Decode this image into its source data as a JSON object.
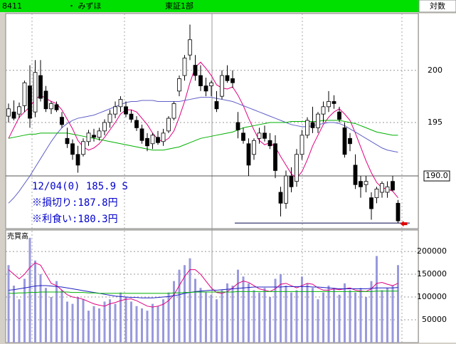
{
  "header": {
    "code": "8411",
    "name": "・ みずほ",
    "market": "東証1部",
    "scale": "対数"
  },
  "chart_data": [
    {
      "type": "candlestick",
      "log_scale": true,
      "grid": true,
      "ylim": [
        185.2,
        205.6
      ],
      "yticks": [
        195,
        200
      ],
      "price_line": {
        "value": 190.0,
        "label": "190.0"
      },
      "h_line": 185.7,
      "annotations": [
        "12/04(0) 185.9 S",
        "※損切り:187.8円",
        "※利食い:180.3円"
      ],
      "ohlc": [
        [
          195.6,
          196.8,
          195.0,
          196.3
        ],
        [
          196.0,
          197.1,
          195.2,
          195.4
        ],
        [
          195.8,
          196.9,
          195.4,
          196.5
        ],
        [
          196.6,
          199.0,
          196.0,
          198.8
        ],
        [
          198.5,
          200.5,
          194.5,
          195.4
        ],
        [
          196.0,
          201.0,
          195.5,
          199.8
        ],
        [
          199.5,
          201.0,
          197.0,
          197.3
        ],
        [
          198.0,
          198.5,
          196.0,
          196.3
        ],
        [
          196.3,
          197.0,
          195.8,
          196.8
        ],
        [
          196.7,
          197.0,
          196.0,
          196.2
        ],
        [
          195.5,
          196.0,
          194.5,
          194.8
        ],
        [
          193.5,
          194.5,
          192.6,
          193.0
        ],
        [
          193.0,
          193.4,
          191.5,
          192.0
        ],
        [
          192.0,
          192.8,
          190.3,
          191.0
        ],
        [
          192.0,
          193.5,
          191.8,
          193.2
        ],
        [
          193.2,
          194.3,
          192.8,
          194.0
        ],
        [
          193.8,
          194.4,
          193.2,
          193.6
        ],
        [
          193.6,
          194.5,
          193.3,
          194.2
        ],
        [
          194.2,
          195.3,
          193.8,
          195.0
        ],
        [
          195.0,
          196.2,
          194.5,
          195.8
        ],
        [
          195.8,
          197.0,
          195.4,
          196.5
        ],
        [
          196.5,
          197.5,
          196.0,
          197.2
        ],
        [
          196.5,
          197.0,
          195.5,
          195.8
        ],
        [
          195.8,
          196.2,
          195.0,
          195.3
        ],
        [
          195.2,
          195.6,
          194.2,
          194.5
        ],
        [
          194.4,
          194.8,
          193.0,
          193.3
        ],
        [
          193.5,
          194.0,
          192.3,
          192.8
        ],
        [
          193.0,
          194.0,
          192.5,
          193.8
        ],
        [
          193.6,
          194.2,
          192.9,
          193.1
        ],
        [
          193.2,
          194.4,
          192.8,
          194.0
        ],
        [
          194.2,
          195.6,
          194.0,
          195.4
        ],
        [
          195.4,
          197.0,
          195.2,
          196.8
        ],
        [
          198.0,
          199.5,
          197.5,
          199.2
        ],
        [
          199.5,
          201.5,
          199.0,
          201.2
        ],
        [
          201.5,
          204.5,
          201.0,
          203.0
        ],
        [
          200.5,
          201.5,
          199.0,
          199.5
        ],
        [
          199.5,
          200.5,
          198.0,
          198.5
        ],
        [
          198.5,
          199.3,
          197.5,
          198.0
        ],
        [
          198.5,
          199.0,
          197.5,
          198.8
        ],
        [
          197.0,
          198.0,
          196.0,
          196.3
        ],
        [
          197.5,
          200.0,
          197.2,
          199.5
        ],
        [
          199.5,
          200.5,
          198.8,
          199.0
        ],
        [
          199.2,
          200.0,
          198.3,
          198.8
        ],
        [
          195.0,
          196.0,
          193.5,
          194.3
        ],
        [
          194.0,
          194.5,
          193.0,
          193.3
        ],
        [
          193.0,
          193.5,
          190.0,
          191.0
        ],
        [
          192.0,
          193.5,
          191.5,
          193.3
        ],
        [
          193.5,
          194.5,
          193.0,
          194.0
        ],
        [
          194.0,
          194.7,
          193.2,
          193.5
        ],
        [
          193.3,
          194.0,
          192.5,
          192.8
        ],
        [
          193.0,
          193.8,
          189.8,
          190.5
        ],
        [
          188.5,
          189.0,
          186.3,
          187.5
        ],
        [
          187.5,
          190.5,
          187.0,
          190.0
        ],
        [
          190.0,
          190.8,
          188.5,
          189.0
        ],
        [
          189.5,
          192.5,
          189.0,
          192.0
        ],
        [
          192.0,
          194.3,
          191.5,
          193.8
        ],
        [
          193.8,
          195.5,
          193.5,
          195.2
        ],
        [
          195.0,
          196.5,
          194.0,
          194.5
        ],
        [
          194.5,
          196.0,
          194.0,
          195.8
        ],
        [
          195.8,
          197.0,
          195.0,
          196.5
        ],
        [
          196.5,
          198.0,
          196.0,
          197.0
        ],
        [
          197.0,
          197.6,
          196.3,
          196.8
        ],
        [
          196.0,
          196.5,
          195.0,
          195.3
        ],
        [
          194.5,
          195.0,
          191.7,
          192.0
        ],
        [
          193.5,
          194.0,
          192.3,
          193.0
        ],
        [
          191.0,
          192.0,
          188.8,
          189.2
        ],
        [
          189.5,
          190.0,
          188.0,
          189.0
        ],
        [
          189.2,
          190.0,
          188.5,
          189.5
        ],
        [
          188.0,
          188.5,
          186.0,
          187.0
        ],
        [
          188.0,
          189.0,
          187.5,
          188.8
        ],
        [
          188.5,
          189.5,
          188.0,
          189.3
        ],
        [
          188.5,
          189.5,
          188.0,
          189.0
        ],
        [
          189.5,
          190.0,
          188.6,
          188.7
        ],
        [
          187.5,
          187.8,
          185.7,
          185.9
        ]
      ],
      "up_color": "#ffffff",
      "down_color": "#000000",
      "series": [
        {
          "color": "#e0007f",
          "values": [
            193.5,
            194.5,
            195.5,
            196.0,
            196.5,
            197.2,
            197.6,
            197.3,
            197.0,
            196.8,
            196.2,
            195.3,
            194.4,
            193.3,
            192.7,
            192.4,
            192.6,
            193.0,
            193.6,
            194.3,
            195.0,
            195.8,
            196.2,
            196.2,
            196.0,
            195.4,
            194.8,
            194.0,
            193.4,
            193.2,
            193.5,
            194.2,
            195.5,
            197.0,
            198.8,
            200.3,
            200.8,
            200.2,
            199.5,
            198.6,
            198.3,
            198.2,
            198.4,
            197.6,
            196.6,
            195.4,
            194.3,
            193.3,
            192.9,
            193.1,
            192.7,
            191.8,
            191.0,
            190.2,
            189.8,
            190.4,
            191.5,
            192.8,
            193.8,
            194.8,
            195.5,
            196.0,
            196.3,
            195.8,
            195.2,
            194.0,
            192.7,
            191.4,
            190.3,
            189.4,
            188.9,
            188.8,
            188.6,
            188.0
          ]
        },
        {
          "color": "#6060c8",
          "values": [
            187.5,
            188.0,
            188.6,
            189.3,
            190.0,
            190.8,
            191.6,
            192.4,
            193.2,
            193.9,
            194.5,
            194.9,
            195.2,
            195.4,
            195.5,
            195.6,
            195.7,
            195.9,
            196.1,
            196.3,
            196.5,
            196.7,
            196.9,
            197.0,
            197.0,
            197.1,
            197.1,
            197.1,
            197.0,
            197.0,
            197.0,
            197.0,
            197.0,
            197.1,
            197.2,
            197.3,
            197.4,
            197.4,
            197.4,
            197.3,
            197.2,
            197.1,
            197.0,
            196.8,
            196.6,
            196.4,
            196.2,
            196.0,
            195.8,
            195.6,
            195.4,
            195.2,
            195.0,
            194.8,
            194.7,
            194.6,
            194.6,
            194.7,
            194.8,
            194.9,
            195.0,
            195.0,
            194.9,
            194.7,
            194.4,
            194.1,
            193.8,
            193.5,
            193.2,
            192.9,
            192.6,
            192.4,
            192.3,
            192.2
          ]
        },
        {
          "color": "#00b000",
          "values": [
            193.5,
            193.6,
            193.7,
            193.8,
            193.9,
            193.9,
            194.0,
            194.0,
            194.0,
            194.0,
            194.0,
            194.0,
            193.9,
            193.8,
            193.7,
            193.6,
            193.5,
            193.4,
            193.3,
            193.2,
            193.1,
            193.0,
            192.9,
            192.8,
            192.7,
            192.6,
            192.5,
            192.4,
            192.4,
            192.4,
            192.5,
            192.6,
            192.7,
            192.9,
            193.1,
            193.3,
            193.5,
            193.6,
            193.7,
            193.8,
            193.9,
            194.0,
            194.1,
            194.3,
            194.5,
            194.6,
            194.7,
            194.8,
            194.9,
            195.0,
            195.0,
            195.0,
            195.0,
            195.1,
            195.1,
            195.1,
            195.1,
            195.1,
            195.1,
            195.2,
            195.2,
            195.2,
            195.2,
            195.1,
            195.0,
            194.9,
            194.7,
            194.5,
            194.3,
            194.1,
            194.0,
            193.9,
            193.8,
            193.8
          ]
        }
      ]
    },
    {
      "type": "bar",
      "title": "売買高",
      "grid": true,
      "ylim": [
        0,
        247000
      ],
      "yticks": [
        50000,
        100000,
        150000,
        200000
      ],
      "color": "#9999dd",
      "values": [
        170000,
        125000,
        95000,
        140000,
        230000,
        180000,
        150000,
        120000,
        100000,
        135000,
        115000,
        90000,
        85000,
        100000,
        95000,
        70000,
        80000,
        75000,
        90000,
        95000,
        85000,
        110000,
        100000,
        90000,
        80000,
        75000,
        70000,
        85000,
        80000,
        95000,
        110000,
        135000,
        160000,
        170000,
        185000,
        140000,
        120000,
        110000,
        105000,
        95000,
        115000,
        130000,
        125000,
        160000,
        145000,
        130000,
        115000,
        110000,
        120000,
        100000,
        140000,
        150000,
        125000,
        110000,
        115000,
        145000,
        130000,
        120000,
        95000,
        110000,
        125000,
        120000,
        105000,
        130000,
        115000,
        110000,
        120000,
        100000,
        135000,
        190000,
        115000,
        120000,
        125000,
        170000
      ],
      "series": [
        {
          "color": "#e0007f",
          "values": [
            160000,
            150000,
            140000,
            150000,
            165000,
            175000,
            170000,
            150000,
            130000,
            125000,
            115000,
            105000,
            100000,
            98000,
            95000,
            90000,
            85000,
            82000,
            80000,
            85000,
            88000,
            92000,
            95000,
            96000,
            92000,
            86000,
            80000,
            78000,
            80000,
            84000,
            92000,
            105000,
            125000,
            145000,
            160000,
            160000,
            150000,
            135000,
            120000,
            110000,
            108000,
            112000,
            120000,
            130000,
            135000,
            132000,
            125000,
            118000,
            115000,
            112000,
            118000,
            128000,
            130000,
            125000,
            120000,
            125000,
            130000,
            128000,
            120000,
            115000,
            115000,
            118000,
            116000,
            118000,
            120000,
            115000,
            113000,
            112000,
            118000,
            130000,
            132000,
            128000,
            125000,
            130000
          ]
        },
        {
          "color": "#2020c0",
          "values": [
            115000,
            116000,
            118000,
            120000,
            122000,
            124000,
            125000,
            125000,
            124000,
            123000,
            122000,
            120000,
            118000,
            116000,
            114000,
            112000,
            110000,
            108000,
            106000,
            104000,
            102000,
            101000,
            100000,
            99000,
            99000,
            98000,
            98000,
            98000,
            99000,
            100000,
            101000,
            103000,
            105000,
            108000,
            110000,
            112000,
            113000,
            114000,
            115000,
            115000,
            116000,
            117000,
            118000,
            119000,
            120000,
            121000,
            122000,
            122000,
            122000,
            122000,
            122000,
            122000,
            123000,
            123000,
            123000,
            123000,
            123000,
            122000,
            122000,
            121000,
            120000,
            119000,
            118000,
            118000,
            118000,
            118000,
            118000,
            118000,
            119000,
            120000,
            120000,
            120000,
            120000,
            121000
          ]
        },
        {
          "color": "#00b000",
          "values": [
            108000,
            108000,
            109000,
            109000,
            110000,
            110000,
            111000,
            111000,
            111000,
            111000,
            111000,
            111000,
            110000,
            110000,
            110000,
            109000,
            109000,
            108000,
            108000,
            108000,
            108000,
            108000,
            108000,
            108000,
            108000,
            108000,
            108000,
            108000,
            108000,
            108000,
            108000,
            109000,
            109000,
            110000,
            110000,
            111000,
            111000,
            111000,
            111000,
            111000,
            111000,
            111000,
            111000,
            112000,
            112000,
            112000,
            112000,
            112000,
            112000,
            112000,
            112000,
            112000,
            112000,
            112000,
            112000,
            112000,
            112000,
            112000,
            112000,
            112000,
            112000,
            112000,
            112000,
            112000,
            112000,
            112000,
            112000,
            112000,
            112000,
            113000,
            113000,
            113000,
            113000,
            113000
          ]
        }
      ]
    }
  ]
}
